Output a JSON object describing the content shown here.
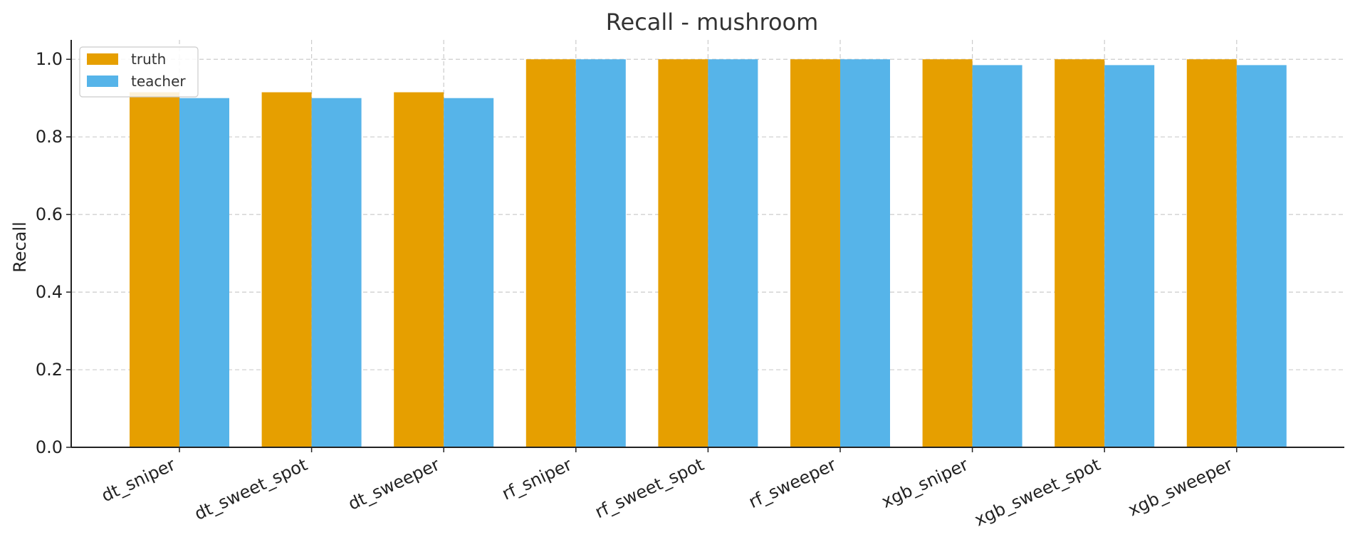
{
  "chart_data": {
    "type": "bar",
    "title": "Recall - mushroom",
    "xlabel": "",
    "ylabel": "Recall",
    "ylim": [
      0,
      1.05
    ],
    "yticks": [
      0.0,
      0.2,
      0.4,
      0.6,
      0.8,
      1.0
    ],
    "ytick_labels": [
      "0.0",
      "0.2",
      "0.4",
      "0.6",
      "0.8",
      "1.0"
    ],
    "grid": true,
    "legend_position": "top-left",
    "categories": [
      "dt_sniper",
      "dt_sweet_spot",
      "dt_sweeper",
      "rf_sniper",
      "rf_sweet_spot",
      "rf_sweeper",
      "xgb_sniper",
      "xgb_sweet_spot",
      "xgb_sweeper"
    ],
    "series": [
      {
        "name": "truth",
        "color": "#E69F00",
        "values": [
          0.915,
          0.915,
          0.915,
          1.0,
          1.0,
          1.0,
          1.0,
          1.0,
          1.0
        ]
      },
      {
        "name": "teacher",
        "color": "#56B4E9",
        "values": [
          0.9,
          0.9,
          0.9,
          1.0,
          1.0,
          1.0,
          0.985,
          0.985,
          0.985
        ]
      }
    ]
  }
}
